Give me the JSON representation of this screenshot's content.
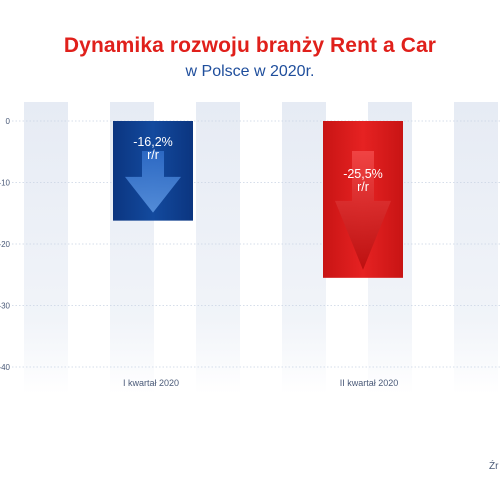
{
  "header": {
    "title": "Dynamika rozwoju branży Rent a Car",
    "subtitle": "w Polsce w 2020r."
  },
  "source_text": "Źr",
  "colors": {
    "title": "#e0201b",
    "subtitle": "#1f4e9c",
    "bar_q1": "#0f3d8c",
    "bar_q2": "#e01b1b",
    "stripe": "#eef2f8",
    "tick_text": "#4a5a78"
  },
  "chart_data": {
    "type": "bar",
    "title": "Dynamika rozwoju branży Rent a Car",
    "subtitle": "w Polsce w 2020r.",
    "categories": [
      "I kwartał 2020",
      "II kwartał 2020"
    ],
    "values": [
      -16.2,
      -25.5
    ],
    "data_labels": [
      "-16,2%\nr/r",
      "-25,5%\nr/r"
    ],
    "bar_colors": [
      "#0f3d8c",
      "#e01b1b"
    ],
    "y_ticks": [
      0,
      -10,
      -20,
      -30,
      -40
    ],
    "y_tick_labels": [
      "0",
      "-10",
      "-20",
      "-30",
      "-40"
    ],
    "ylim": [
      -40,
      0
    ],
    "xlabel": "",
    "ylabel": "",
    "grid": true,
    "legend": "none"
  }
}
